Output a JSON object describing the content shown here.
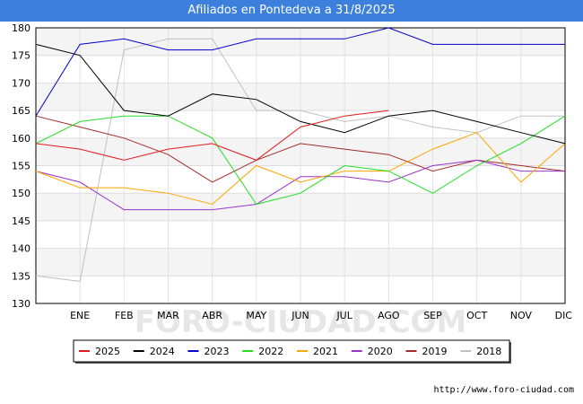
{
  "chart_data": {
    "type": "line",
    "title": "Afiliados en Pontedeva a 31/8/2025",
    "xlabel": "",
    "ylabel": "",
    "categories": [
      "",
      "ENE",
      "FEB",
      "MAR",
      "ABR",
      "MAY",
      "JUN",
      "JUL",
      "AGO",
      "SEP",
      "OCT",
      "NOV",
      "DIC"
    ],
    "ylim": [
      130,
      180
    ],
    "yticks": [
      130,
      135,
      140,
      145,
      150,
      155,
      160,
      165,
      170,
      175,
      180
    ],
    "grid": "horizontal bands",
    "legend_position": "bottom",
    "series": [
      {
        "name": "2025",
        "color": "#e31a1c",
        "values": [
          159,
          158,
          156,
          158,
          159,
          156,
          162,
          164,
          165,
          null,
          null,
          null,
          null
        ]
      },
      {
        "name": "2024",
        "color": "#000000",
        "values": [
          177,
          175,
          165,
          164,
          168,
          167,
          163,
          161,
          164,
          165,
          163,
          161,
          159
        ]
      },
      {
        "name": "2023",
        "color": "#0000cc",
        "values": [
          164,
          177,
          178,
          176,
          176,
          178,
          178,
          178,
          180,
          177,
          177,
          177,
          177
        ]
      },
      {
        "name": "2022",
        "color": "#22dd22",
        "values": [
          159,
          163,
          164,
          164,
          160,
          148,
          150,
          155,
          154,
          150,
          155,
          159,
          164
        ]
      },
      {
        "name": "2021",
        "color": "#ffa500",
        "values": [
          154,
          151,
          151,
          150,
          148,
          155,
          152,
          154,
          154,
          158,
          161,
          152,
          159
        ]
      },
      {
        "name": "2020",
        "color": "#9933cc",
        "values": [
          154,
          152,
          147,
          147,
          147,
          148,
          153,
          153,
          152,
          155,
          156,
          154,
          154
        ]
      },
      {
        "name": "2019",
        "color": "#a52a2a",
        "values": [
          164,
          162,
          160,
          157,
          152,
          156,
          159,
          158,
          157,
          154,
          156,
          155,
          154
        ]
      },
      {
        "name": "2018",
        "color": "#c0c0c0",
        "values": [
          135,
          134,
          176,
          178,
          178,
          165,
          165,
          163,
          164,
          162,
          161,
          164,
          164
        ]
      }
    ]
  },
  "watermark": "FORO-CIUDAD.COM",
  "source": "http://www.foro-ciudad.com"
}
